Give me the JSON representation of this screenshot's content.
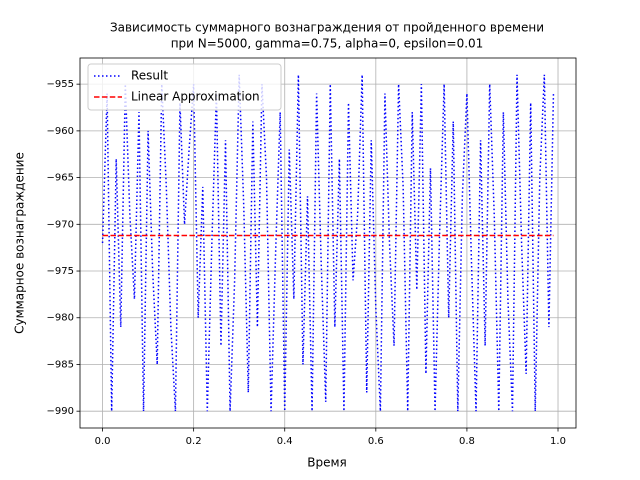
{
  "chart_data": {
    "type": "line",
    "title": [
      "Зависимость суммарного вознаграждения от пройденного времени",
      "при N=5000, gamma=0.75, alpha=0, epsilon=0.01"
    ],
    "xlabel": "Время",
    "ylabel": "Суммарное вознаграждение",
    "xlim": [
      -0.0495,
      1.0395
    ],
    "ylim": [
      -991.8,
      -952.2
    ],
    "xticks": [
      {
        "value": 0,
        "label": "0.0"
      },
      0.2,
      0.4,
      0.6,
      0.8,
      {
        "value": 1,
        "label": "1.0"
      }
    ],
    "yticks": [
      {
        "value": -955,
        "label": "−955"
      },
      {
        "value": -960,
        "label": "−960"
      },
      {
        "value": -965,
        "label": "−965"
      },
      {
        "value": -970,
        "label": "−970"
      },
      {
        "value": -975,
        "label": "−975"
      },
      {
        "value": -980,
        "label": "−980"
      },
      {
        "value": -985,
        "label": "−985"
      },
      {
        "value": -990,
        "label": "−990"
      }
    ],
    "grid": true,
    "legend": "upper left",
    "series": [
      {
        "name": "Result",
        "color": "#0000ff",
        "dash": "dotted",
        "x": [
          0,
          0.01,
          0.02,
          0.03,
          0.04,
          0.05,
          0.06,
          0.07,
          0.08,
          0.09,
          0.1,
          0.11,
          0.12,
          0.13,
          0.14,
          0.15,
          0.16,
          0.17,
          0.18,
          0.19,
          0.2,
          0.21,
          0.22,
          0.23,
          0.24,
          0.25,
          0.26,
          0.27,
          0.28,
          0.29,
          0.3,
          0.31,
          0.32,
          0.33,
          0.34,
          0.35,
          0.36,
          0.37,
          0.38,
          0.39,
          0.4,
          0.41,
          0.42,
          0.43,
          0.44,
          0.45,
          0.46,
          0.47,
          0.48,
          0.49,
          0.5,
          0.51,
          0.52,
          0.53,
          0.54,
          0.55,
          0.56,
          0.57,
          0.58,
          0.59,
          0.6,
          0.61,
          0.62,
          0.63,
          0.64,
          0.65,
          0.66,
          0.67,
          0.68,
          0.69,
          0.7,
          0.71,
          0.72,
          0.73,
          0.74,
          0.75,
          0.76,
          0.77,
          0.78,
          0.79,
          0.8,
          0.81,
          0.82,
          0.83,
          0.84,
          0.85,
          0.86,
          0.87,
          0.88,
          0.89,
          0.9,
          0.91,
          0.92,
          0.93,
          0.94,
          0.95,
          0.96,
          0.97,
          0.98,
          0.99
        ],
        "values": [
          -972,
          -956,
          -990,
          -963,
          -981,
          -955,
          -969,
          -978,
          -958,
          -990,
          -960,
          -975,
          -985,
          -955,
          -966,
          -981,
          -990,
          -957,
          -970,
          -962,
          -955,
          -980,
          -966,
          -990,
          -972,
          -956,
          -983,
          -961,
          -990,
          -976,
          -954,
          -968,
          -988,
          -959,
          -981,
          -955,
          -965,
          -990,
          -973,
          -958,
          -990,
          -962,
          -978,
          -954,
          -985,
          -967,
          -990,
          -956,
          -974,
          -989,
          -955,
          -981,
          -963,
          -990,
          -957,
          -976,
          -969,
          -954,
          -988,
          -961,
          -979,
          -990,
          -956,
          -972,
          -983,
          -955,
          -966,
          -990,
          -958,
          -977,
          -955,
          -986,
          -964,
          -990,
          -971,
          -955,
          -980,
          -959,
          -990,
          -967,
          -956,
          -974,
          -990,
          -961,
          -983,
          -955,
          -969,
          -990,
          -958,
          -978,
          -990,
          -954,
          -972,
          -986,
          -957,
          -990,
          -965,
          -954,
          -981,
          -956
        ]
      },
      {
        "name": "Linear Approximation",
        "color": "#ff0000",
        "dash": "dashed",
        "x": [
          0,
          0.99
        ],
        "values": [
          -971.2,
          -971.2
        ]
      }
    ]
  }
}
